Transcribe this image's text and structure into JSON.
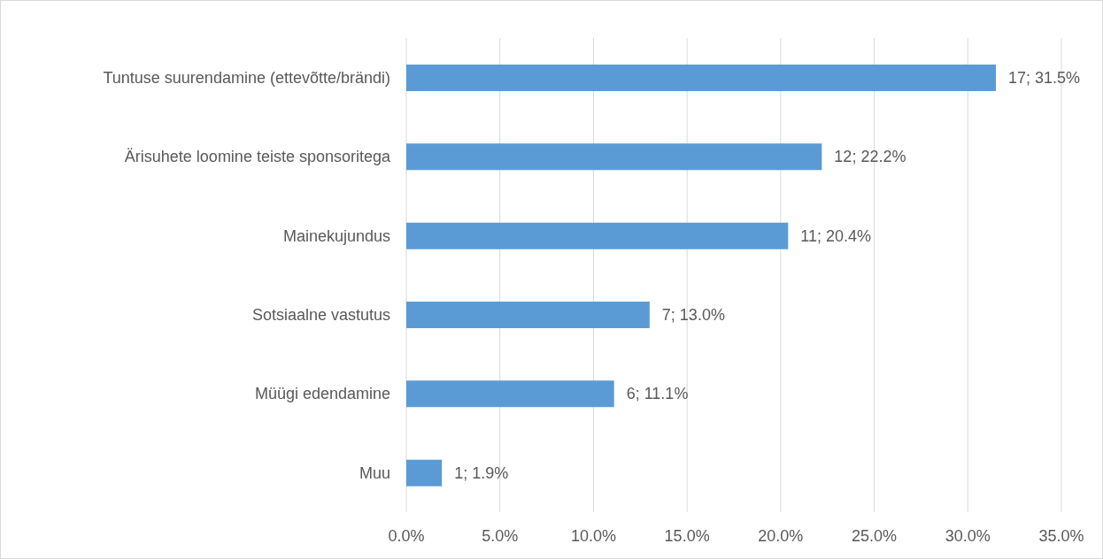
{
  "chart_data": {
    "type": "bar",
    "orientation": "horizontal",
    "categories": [
      "Tuntuse suurendamine (ettevõtte/brändi)",
      "Ärisuhete loomine teiste sponsoritega",
      "Mainekujundus",
      "Sotsiaalne vastutus",
      "Müügi edendamine",
      "Muu"
    ],
    "values": [
      31.5,
      22.2,
      20.4,
      13.0,
      11.1,
      1.9
    ],
    "value_labels": [
      "17; 31.5%",
      "12; 22.2%",
      "11; 20.4%",
      "7; 13.0%",
      "6; 11.1%",
      "1; 1.9%"
    ],
    "color": "#5b9bd5",
    "xlim": [
      0,
      35
    ],
    "xticks": [
      {
        "value": 0,
        "label": "0.0%"
      },
      {
        "value": 5,
        "label": "5.0%"
      },
      {
        "value": 10,
        "label": "10.0%"
      },
      {
        "value": 15,
        "label": "15.0%"
      },
      {
        "value": 20,
        "label": "20.0%"
      },
      {
        "value": 25,
        "label": "25.0%"
      },
      {
        "value": 30,
        "label": "30.0%"
      },
      {
        "value": 35,
        "label": "35.0%"
      }
    ],
    "grid": "x"
  }
}
